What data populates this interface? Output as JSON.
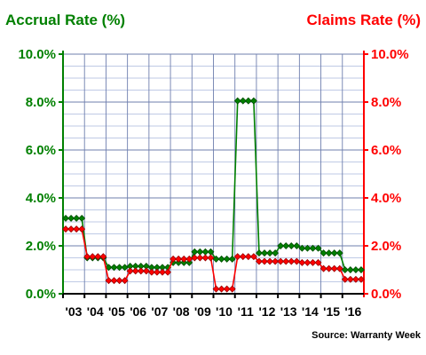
{
  "chart_data": {
    "type": "line",
    "title": "",
    "left_axis_title": "Accrual Rate (%)",
    "right_axis_title": "Claims Rate (%)",
    "source": "Source: Warranty Week",
    "ylim": [
      0,
      10
    ],
    "y_ticks": [
      "0.0%",
      "2.0%",
      "4.0%",
      "6.0%",
      "8.0%",
      "10.0%"
    ],
    "x_tick_labels": [
      "'03",
      "'04",
      "'05",
      "'06",
      "'07",
      "'08",
      "'09",
      "'10",
      "'11",
      "'12",
      "'13",
      "'14",
      "'15",
      "'16"
    ],
    "quarters_per_year": 4,
    "grid": true,
    "colors": {
      "accrual": "#008000",
      "claims": "#ff0000",
      "grid_minor": "#aab8dc",
      "grid_major": "#6f7fae"
    },
    "series": [
      {
        "name": "Accrual Rate (%)",
        "axis": "left",
        "values": [
          3.15,
          3.15,
          3.15,
          3.15,
          1.5,
          1.5,
          1.5,
          1.5,
          1.1,
          1.1,
          1.1,
          1.1,
          1.15,
          1.15,
          1.15,
          1.15,
          1.1,
          1.1,
          1.1,
          1.1,
          1.3,
          1.3,
          1.3,
          1.3,
          1.75,
          1.75,
          1.75,
          1.75,
          1.45,
          1.45,
          1.45,
          1.45,
          8.05,
          8.05,
          8.05,
          8.05,
          1.7,
          1.7,
          1.7,
          1.7,
          2.0,
          2.0,
          2.0,
          2.0,
          1.9,
          1.9,
          1.9,
          1.9,
          1.7,
          1.7,
          1.7,
          1.7,
          1.0,
          1.0,
          1.0,
          1.0
        ]
      },
      {
        "name": "Claims Rate (%)",
        "axis": "right",
        "values": [
          2.7,
          2.7,
          2.7,
          2.7,
          1.55,
          1.55,
          1.55,
          1.55,
          0.55,
          0.55,
          0.55,
          0.55,
          0.95,
          0.95,
          0.95,
          0.95,
          0.9,
          0.9,
          0.9,
          0.9,
          1.45,
          1.45,
          1.45,
          1.45,
          1.5,
          1.5,
          1.5,
          1.5,
          0.2,
          0.2,
          0.2,
          0.2,
          1.55,
          1.55,
          1.55,
          1.55,
          1.35,
          1.35,
          1.35,
          1.35,
          1.35,
          1.35,
          1.35,
          1.35,
          1.3,
          1.3,
          1.3,
          1.3,
          1.05,
          1.05,
          1.05,
          1.05,
          0.6,
          0.6,
          0.6,
          0.6
        ]
      }
    ]
  }
}
